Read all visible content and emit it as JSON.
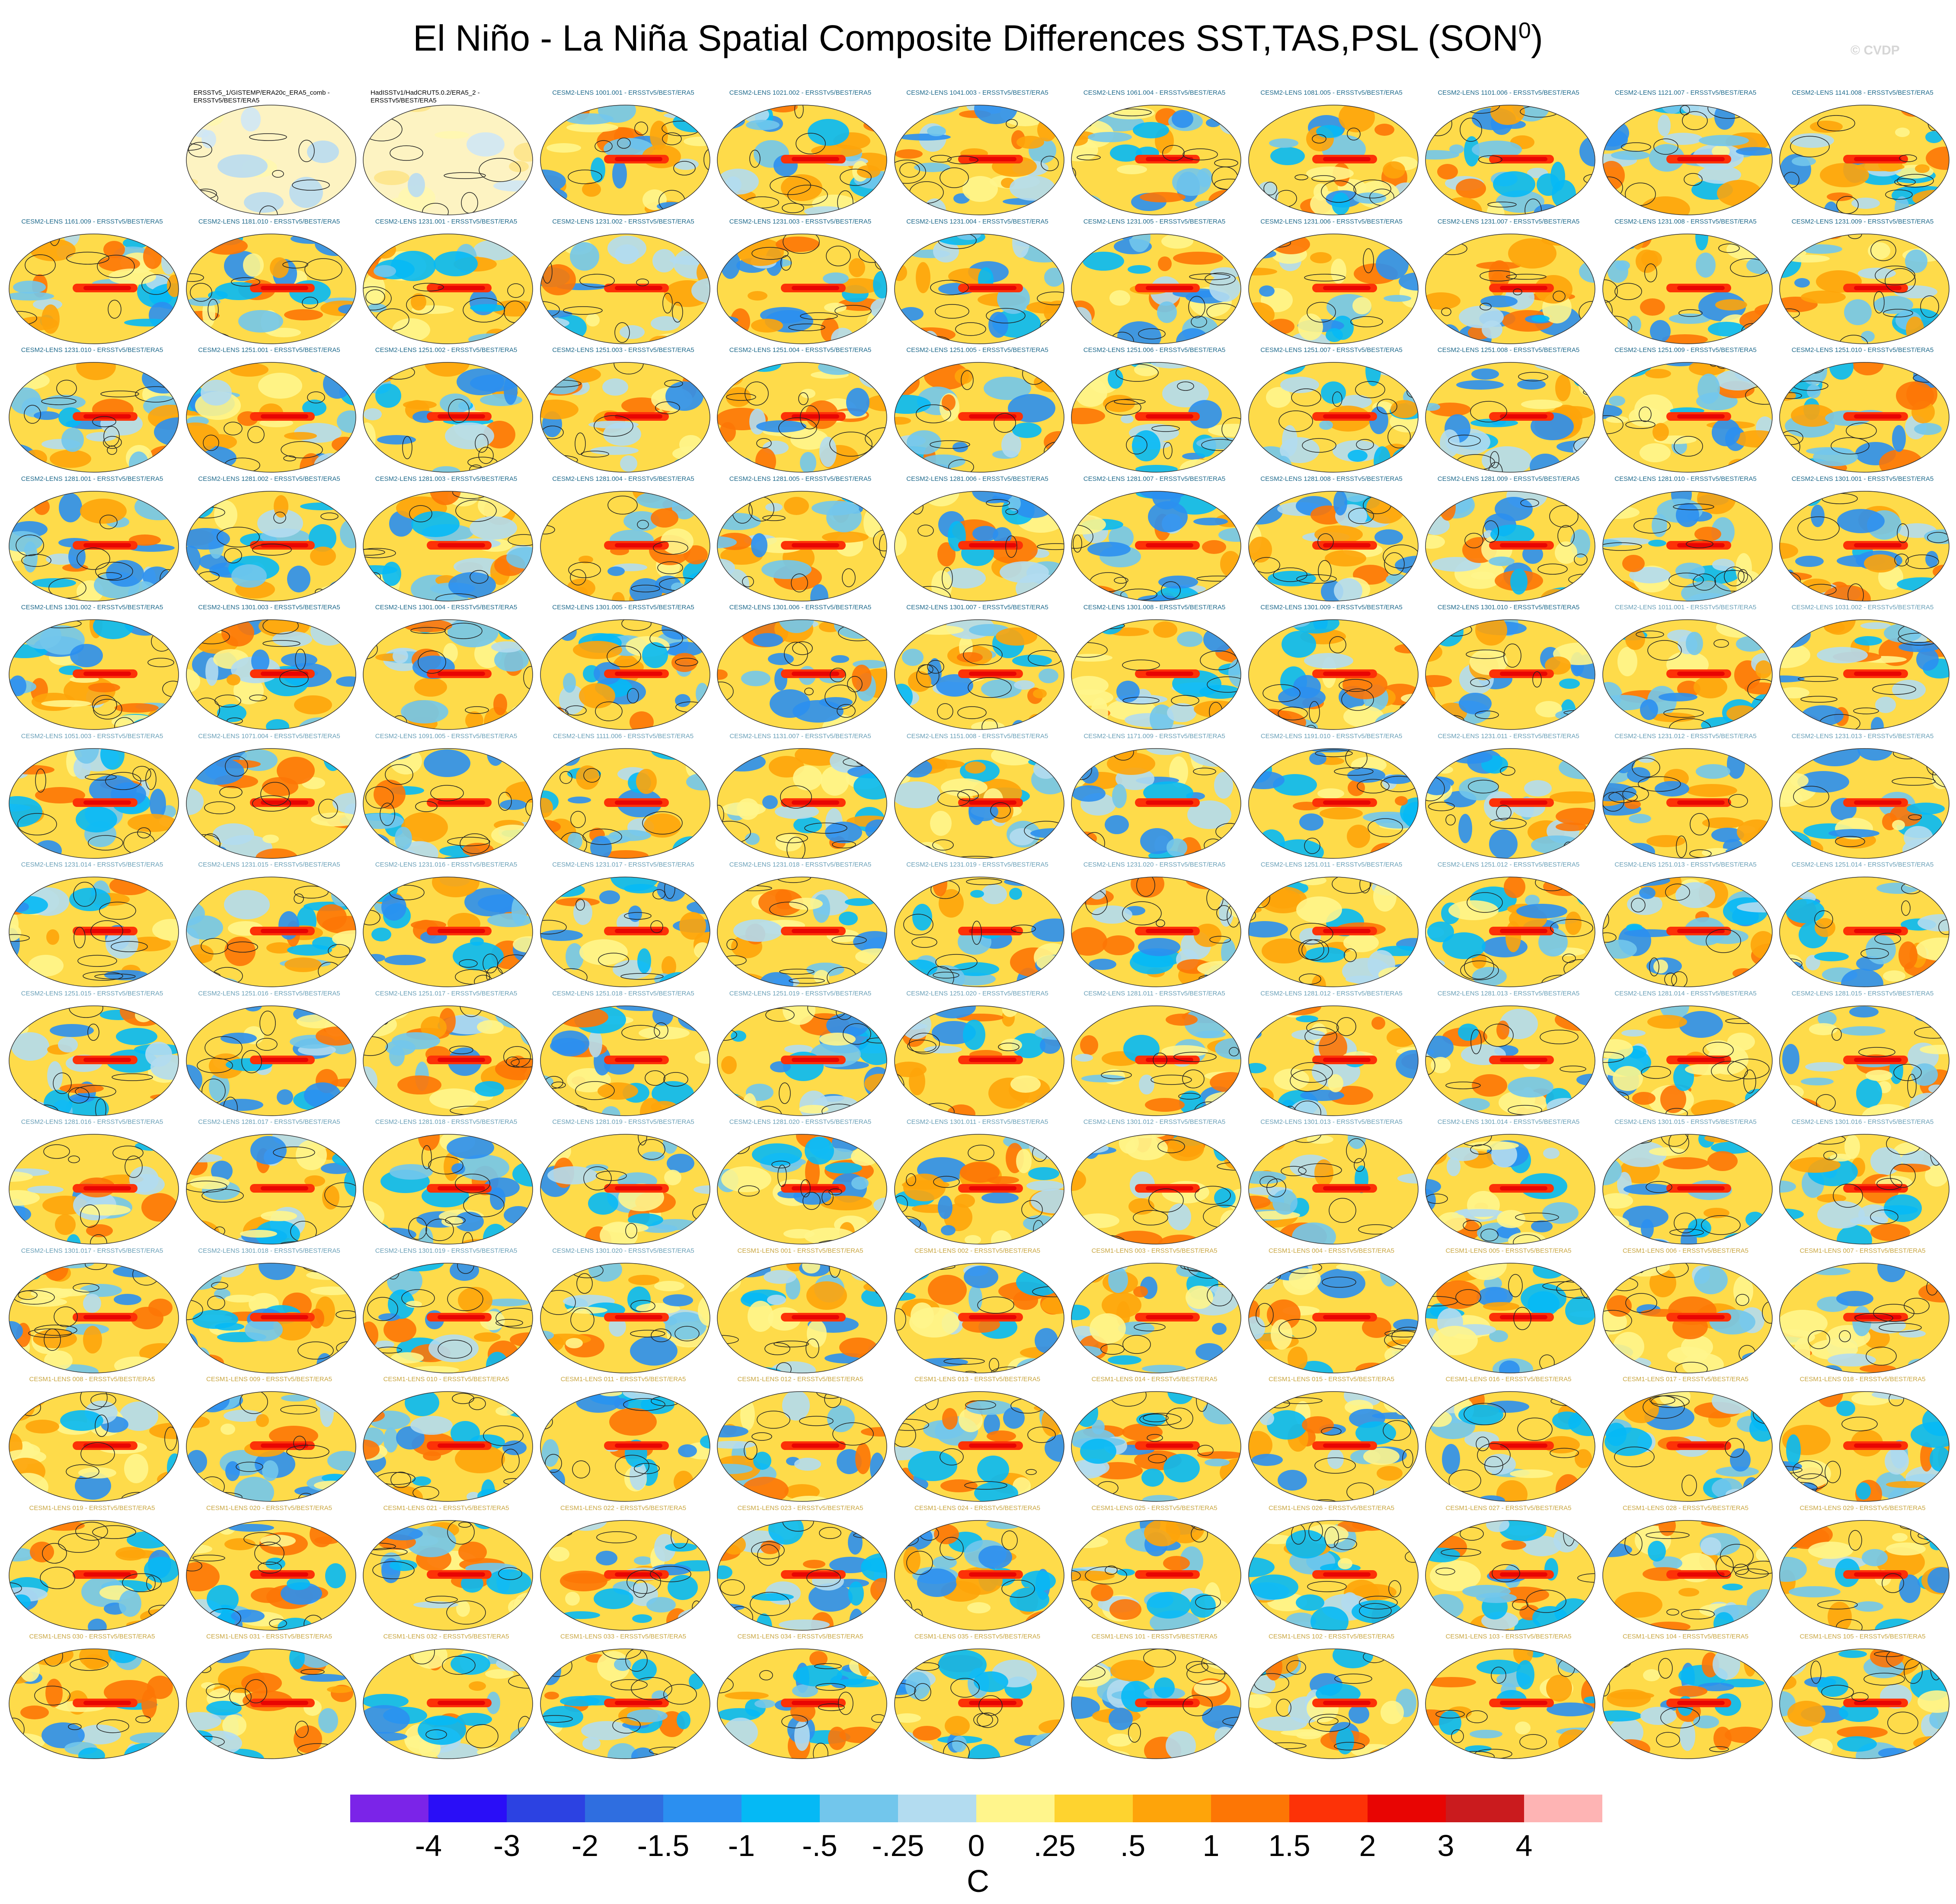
{
  "title": "El Niño - La Niña Spatial Composite Differences SST,TAS,PSL (SON",
  "title_superscript": "0",
  "title_suffix": ")",
  "watermark": "© CVDP",
  "panel_labels": [
    "",
    "ERSSTv5_1/GISTEMP/ERA20c_ERA5_comb - ERSSTv5/BEST/ERA5",
    "HadISSTv1/HadCRUT5.0.2/ERA5_2 - ERSSTv5/BEST/ERA5",
    "CESM2-LENS 1001.001 - ERSSTv5/BEST/ERA5",
    "CESM2-LENS 1021.002 - ERSSTv5/BEST/ERA5",
    "CESM2-LENS 1041.003 - ERSSTv5/BEST/ERA5",
    "CESM2-LENS 1061.004 - ERSSTv5/BEST/ERA5",
    "CESM2-LENS 1081.005 - ERSSTv5/BEST/ERA5",
    "CESM2-LENS 1101.006 - ERSSTv5/BEST/ERA5",
    "CESM2-LENS 1121.007 - ERSSTv5/BEST/ERA5",
    "CESM2-LENS 1141.008 - ERSSTv5/BEST/ERA5",
    "CESM2-LENS 1161.009 - ERSSTv5/BEST/ERA5",
    "CESM2-LENS 1181.010 - ERSSTv5/BEST/ERA5",
    "CESM2-LENS 1231.001 - ERSSTv5/BEST/ERA5",
    "CESM2-LENS 1231.002 - ERSSTv5/BEST/ERA5",
    "CESM2-LENS 1231.003 - ERSSTv5/BEST/ERA5",
    "CESM2-LENS 1231.004 - ERSSTv5/BEST/ERA5",
    "CESM2-LENS 1231.005 - ERSSTv5/BEST/ERA5",
    "CESM2-LENS 1231.006 - ERSSTv5/BEST/ERA5",
    "CESM2-LENS 1231.007 - ERSSTv5/BEST/ERA5",
    "CESM2-LENS 1231.008 - ERSSTv5/BEST/ERA5",
    "CESM2-LENS 1231.009 - ERSSTv5/BEST/ERA5",
    "CESM2-LENS 1231.010 - ERSSTv5/BEST/ERA5",
    "CESM2-LENS 1251.001 - ERSSTv5/BEST/ERA5",
    "CESM2-LENS 1251.002 - ERSSTv5/BEST/ERA5",
    "CESM2-LENS 1251.003 - ERSSTv5/BEST/ERA5",
    "CESM2-LENS 1251.004 - ERSSTv5/BEST/ERA5",
    "CESM2-LENS 1251.005 - ERSSTv5/BEST/ERA5",
    "CESM2-LENS 1251.006 - ERSSTv5/BEST/ERA5",
    "CESM2-LENS 1251.007 - ERSSTv5/BEST/ERA5",
    "CESM2-LENS 1251.008 - ERSSTv5/BEST/ERA5",
    "CESM2-LENS 1251.009 - ERSSTv5/BEST/ERA5",
    "CESM2-LENS 1251.010 - ERSSTv5/BEST/ERA5",
    "CESM2-LENS 1281.001 - ERSSTv5/BEST/ERA5",
    "CESM2-LENS 1281.002 - ERSSTv5/BEST/ERA5",
    "CESM2-LENS 1281.003 - ERSSTv5/BEST/ERA5",
    "CESM2-LENS 1281.004 - ERSSTv5/BEST/ERA5",
    "CESM2-LENS 1281.005 - ERSSTv5/BEST/ERA5",
    "CESM2-LENS 1281.006 - ERSSTv5/BEST/ERA5",
    "CESM2-LENS 1281.007 - ERSSTv5/BEST/ERA5",
    "CESM2-LENS 1281.008 - ERSSTv5/BEST/ERA5",
    "CESM2-LENS 1281.009 - ERSSTv5/BEST/ERA5",
    "CESM2-LENS 1281.010 - ERSSTv5/BEST/ERA5",
    "CESM2-LENS 1301.001 - ERSSTv5/BEST/ERA5",
    "CESM2-LENS 1301.002 - ERSSTv5/BEST/ERA5",
    "CESM2-LENS 1301.003 - ERSSTv5/BEST/ERA5",
    "CESM2-LENS 1301.004 - ERSSTv5/BEST/ERA5",
    "CESM2-LENS 1301.005 - ERSSTv5/BEST/ERA5",
    "CESM2-LENS 1301.006 - ERSSTv5/BEST/ERA5",
    "CESM2-LENS 1301.007 - ERSSTv5/BEST/ERA5",
    "CESM2-LENS 1301.008 - ERSSTv5/BEST/ERA5",
    "CESM2-LENS 1301.009 - ERSSTv5/BEST/ERA5",
    "CESM2-LENS 1301.010 - ERSSTv5/BEST/ERA5",
    "CESM2-LENS 1011.001 - ERSSTv5/BEST/ERA5",
    "CESM2-LENS 1031.002 - ERSSTv5/BEST/ERA5",
    "CESM2-LENS 1051.003 - ERSSTv5/BEST/ERA5",
    "CESM2-LENS 1071.004 - ERSSTv5/BEST/ERA5",
    "CESM2-LENS 1091.005 - ERSSTv5/BEST/ERA5",
    "CESM2-LENS 1111.006 - ERSSTv5/BEST/ERA5",
    "CESM2-LENS 1131.007 - ERSSTv5/BEST/ERA5",
    "CESM2-LENS 1151.008 - ERSSTv5/BEST/ERA5",
    "CESM2-LENS 1171.009 - ERSSTv5/BEST/ERA5",
    "CESM2-LENS 1191.010 - ERSSTv5/BEST/ERA5",
    "CESM2-LENS 1231.011 - ERSSTv5/BEST/ERA5",
    "CESM2-LENS 1231.012 - ERSSTv5/BEST/ERA5",
    "CESM2-LENS 1231.013 - ERSSTv5/BEST/ERA5",
    "CESM2-LENS 1231.014 - ERSSTv5/BEST/ERA5",
    "CESM2-LENS 1231.015 - ERSSTv5/BEST/ERA5",
    "CESM2-LENS 1231.016 - ERSSTv5/BEST/ERA5",
    "CESM2-LENS 1231.017 - ERSSTv5/BEST/ERA5",
    "CESM2-LENS 1231.018 - ERSSTv5/BEST/ERA5",
    "CESM2-LENS 1231.019 - ERSSTv5/BEST/ERA5",
    "CESM2-LENS 1231.020 - ERSSTv5/BEST/ERA5",
    "CESM2-LENS 1251.011 - ERSSTv5/BEST/ERA5",
    "CESM2-LENS 1251.012 - ERSSTv5/BEST/ERA5",
    "CESM2-LENS 1251.013 - ERSSTv5/BEST/ERA5",
    "CESM2-LENS 1251.014 - ERSSTv5/BEST/ERA5",
    "CESM2-LENS 1251.015 - ERSSTv5/BEST/ERA5",
    "CESM2-LENS 1251.016 - ERSSTv5/BEST/ERA5",
    "CESM2-LENS 1251.017 - ERSSTv5/BEST/ERA5",
    "CESM2-LENS 1251.018 - ERSSTv5/BEST/ERA5",
    "CESM2-LENS 1251.019 - ERSSTv5/BEST/ERA5",
    "CESM2-LENS 1251.020 - ERSSTv5/BEST/ERA5",
    "CESM2-LENS 1281.011 - ERSSTv5/BEST/ERA5",
    "CESM2-LENS 1281.012 - ERSSTv5/BEST/ERA5",
    "CESM2-LENS 1281.013 - ERSSTv5/BEST/ERA5",
    "CESM2-LENS 1281.014 - ERSSTv5/BEST/ERA5",
    "CESM2-LENS 1281.015 - ERSSTv5/BEST/ERA5",
    "CESM2-LENS 1281.016 - ERSSTv5/BEST/ERA5",
    "CESM2-LENS 1281.017 - ERSSTv5/BEST/ERA5",
    "CESM2-LENS 1281.018 - ERSSTv5/BEST/ERA5",
    "CESM2-LENS 1281.019 - ERSSTv5/BEST/ERA5",
    "CESM2-LENS 1281.020 - ERSSTv5/BEST/ERA5",
    "CESM2-LENS 1301.011 - ERSSTv5/BEST/ERA5",
    "CESM2-LENS 1301.012 - ERSSTv5/BEST/ERA5",
    "CESM2-LENS 1301.013 - ERSSTv5/BEST/ERA5",
    "CESM2-LENS 1301.014 - ERSSTv5/BEST/ERA5",
    "CESM2-LENS 1301.015 - ERSSTv5/BEST/ERA5",
    "CESM2-LENS 1301.016 - ERSSTv5/BEST/ERA5",
    "CESM2-LENS 1301.017 - ERSSTv5/BEST/ERA5",
    "CESM2-LENS 1301.018 - ERSSTv5/BEST/ERA5",
    "CESM2-LENS 1301.019 - ERSSTv5/BEST/ERA5",
    "CESM2-LENS 1301.020 - ERSSTv5/BEST/ERA5",
    "CESM1-LENS 001 - ERSSTv5/BEST/ERA5",
    "CESM1-LENS 002 - ERSSTv5/BEST/ERA5",
    "CESM1-LENS 003 - ERSSTv5/BEST/ERA5",
    "CESM1-LENS 004 - ERSSTv5/BEST/ERA5",
    "CESM1-LENS 005 - ERSSTv5/BEST/ERA5",
    "CESM1-LENS 006 - ERSSTv5/BEST/ERA5",
    "CESM1-LENS 007 - ERSSTv5/BEST/ERA5",
    "CESM1-LENS 008 - ERSSTv5/BEST/ERA5",
    "CESM1-LENS 009 - ERSSTv5/BEST/ERA5",
    "CESM1-LENS 010 - ERSSTv5/BEST/ERA5",
    "CESM1-LENS 011 - ERSSTv5/BEST/ERA5",
    "CESM1-LENS 012 - ERSSTv5/BEST/ERA5",
    "CESM1-LENS 013 - ERSSTv5/BEST/ERA5",
    "CESM1-LENS 014 - ERSSTv5/BEST/ERA5",
    "CESM1-LENS 015 - ERSSTv5/BEST/ERA5",
    "CESM1-LENS 016 - ERSSTv5/BEST/ERA5",
    "CESM1-LENS 017 - ERSSTv5/BEST/ERA5",
    "CESM1-LENS 018 - ERSSTv5/BEST/ERA5",
    "CESM1-LENS 019 - ERSSTv5/BEST/ERA5",
    "CESM1-LENS 020 - ERSSTv5/BEST/ERA5",
    "CESM1-LENS 021 - ERSSTv5/BEST/ERA5",
    "CESM1-LENS 022 - ERSSTv5/BEST/ERA5",
    "CESM1-LENS 023 - ERSSTv5/BEST/ERA5",
    "CESM1-LENS 024 - ERSSTv5/BEST/ERA5",
    "CESM1-LENS 025 - ERSSTv5/BEST/ERA5",
    "CESM1-LENS 026 - ERSSTv5/BEST/ERA5",
    "CESM1-LENS 027 - ERSSTv5/BEST/ERA5",
    "CESM1-LENS 028 - ERSSTv5/BEST/ERA5",
    "CESM1-LENS 029 - ERSSTv5/BEST/ERA5",
    "CESM1-LENS 030 - ERSSTv5/BEST/ERA5",
    "CESM1-LENS 031 - ERSSTv5/BEST/ERA5",
    "CESM1-LENS 032 - ERSSTv5/BEST/ERA5",
    "CESM1-LENS 033 - ERSSTv5/BEST/ERA5",
    "CESM1-LENS 034 - ERSSTv5/BEST/ERA5",
    "CESM1-LENS 035 - ERSSTv5/BEST/ERA5",
    "CESM1-LENS 101 - ERSSTv5/BEST/ERA5",
    "CESM1-LENS 102 - ERSSTv5/BEST/ERA5",
    "CESM1-LENS 103 - ERSSTv5/BEST/ERA5",
    "CESM1-LENS 104 - ERSSTv5/BEST/ERA5",
    "CESM1-LENS 105 - ERSSTv5/BEST/ERA5"
  ],
  "colorbar": {
    "colors": [
      "#7b24e8",
      "#2a0ef7",
      "#2c42e2",
      "#2f6ee0",
      "#2b8ff0",
      "#05b9f5",
      "#72c6ec",
      "#b3dcf0",
      "#fff58c",
      "#fed32f",
      "#fea40a",
      "#fd7605",
      "#fd3207",
      "#e80503",
      "#ca1b1e",
      "#feb4b4"
    ],
    "tick_labels": [
      "-4",
      "-3",
      "-2",
      "-1.5",
      "-1",
      "-.5",
      "-.25",
      "0",
      ".25",
      ".5",
      "1",
      "1.5",
      "2",
      "3",
      "4"
    ],
    "units": "C"
  }
}
